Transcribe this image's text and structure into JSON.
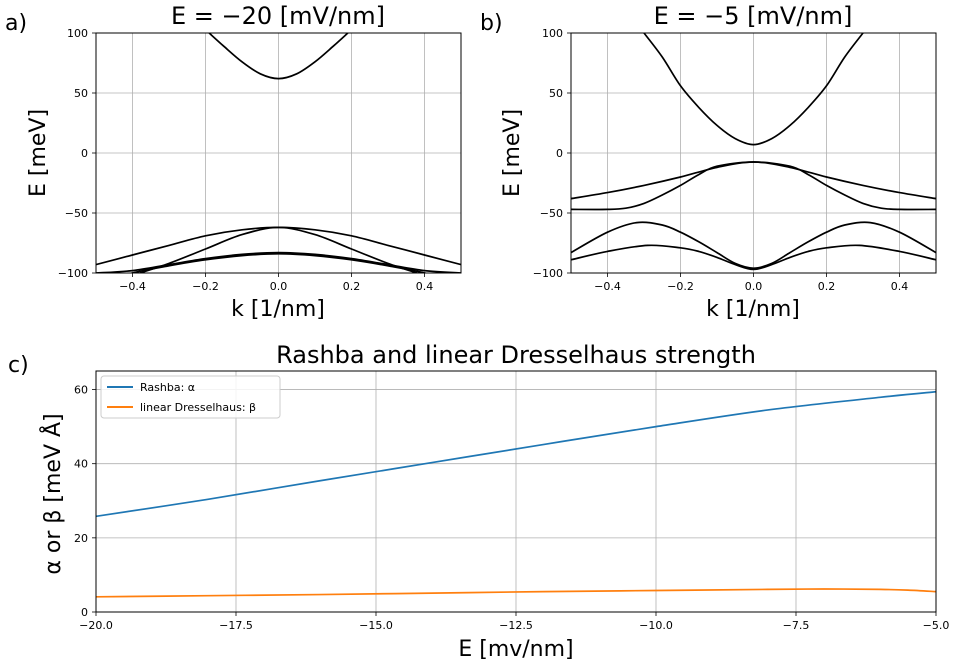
{
  "chart_data": [
    {
      "type": "line",
      "panel_label": "a)",
      "title": "E = −20 [mV/nm]",
      "xlabel": "k [1/nm]",
      "ylabel": "E [meV]",
      "xlim": [
        -0.5,
        0.5
      ],
      "ylim": [
        -100,
        100
      ],
      "xticks": [
        -0.4,
        -0.2,
        0.0,
        0.2,
        0.4
      ],
      "xtick_labels": [
        "−0.4",
        "−0.2",
        "0.0",
        "0.2",
        "0.4"
      ],
      "yticks": [
        -100,
        -50,
        0,
        50,
        100
      ],
      "ytick_labels": [
        "−100",
        "−50",
        "0",
        "50",
        "100"
      ],
      "grid": true,
      "series": [
        {
          "color": "#000000",
          "x": [
            -0.19,
            -0.15,
            -0.1,
            -0.05,
            0.0,
            0.05,
            0.1,
            0.15,
            0.19
          ],
          "y": [
            100,
            89,
            76,
            66,
            62,
            66,
            76,
            89,
            100
          ]
        },
        {
          "color": "#000000",
          "x": [
            -0.5,
            -0.4,
            -0.3,
            -0.2,
            -0.1,
            0.0,
            0.1,
            0.2,
            0.3,
            0.4,
            0.5
          ],
          "y": [
            -93,
            -85,
            -77,
            -69,
            -64,
            -62,
            -64,
            -69,
            -77,
            -85,
            -93
          ]
        },
        {
          "color": "#000000",
          "x": [
            -0.5,
            -0.4,
            -0.3,
            -0.2,
            -0.1,
            0.0,
            0.1,
            0.2,
            0.3,
            0.4,
            0.5
          ],
          "y": [
            -100,
            -98,
            -93,
            -88,
            -84.5,
            -83,
            -84.5,
            -88,
            -93,
            -98,
            -100
          ]
        },
        {
          "color": "#000000",
          "x": [
            -0.38,
            -0.3,
            -0.2,
            -0.1,
            0.0,
            0.1,
            0.2,
            0.3,
            0.38
          ],
          "y": [
            -100,
            -92,
            -80,
            -68,
            -62,
            -68,
            -80,
            -92,
            -100
          ]
        },
        {
          "color": "#000000",
          "x": [
            -0.5,
            -0.4,
            -0.3,
            -0.2,
            -0.1,
            0.0,
            0.1,
            0.2,
            0.3,
            0.4,
            0.5
          ],
          "y": [
            -109,
            -100,
            -94,
            -89,
            -85.5,
            -84,
            -85.5,
            -89,
            -94,
            -100,
            -109
          ]
        }
      ]
    },
    {
      "type": "line",
      "panel_label": "b)",
      "title": "E = −5 [mV/nm]",
      "xlabel": "k [1/nm]",
      "ylabel": "E [meV]",
      "xlim": [
        -0.5,
        0.5
      ],
      "ylim": [
        -100,
        100
      ],
      "xticks": [
        -0.4,
        -0.2,
        0.0,
        0.2,
        0.4
      ],
      "xtick_labels": [
        "−0.4",
        "−0.2",
        "0.0",
        "0.2",
        "0.4"
      ],
      "yticks": [
        -100,
        -50,
        0,
        50,
        100
      ],
      "ytick_labels": [
        "−100",
        "−50",
        "0",
        "50",
        "100"
      ],
      "grid": true,
      "series": [
        {
          "color": "#000000",
          "x": [
            -0.3,
            -0.25,
            -0.2,
            -0.15,
            -0.1,
            -0.05,
            0.0,
            0.05,
            0.1,
            0.15,
            0.2,
            0.25,
            0.3
          ],
          "y": [
            100,
            80,
            56,
            38,
            23,
            12,
            7,
            12,
            23,
            38,
            56,
            80,
            100
          ]
        },
        {
          "color": "#000000",
          "x": [
            -0.5,
            -0.4,
            -0.3,
            -0.2,
            -0.1,
            0.0,
            0.1,
            0.2,
            0.3,
            0.4,
            0.5
          ],
          "y": [
            -38,
            -33,
            -27,
            -20,
            -12,
            -7.5,
            -12,
            -20,
            -27,
            -33,
            -38
          ]
        },
        {
          "color": "#000000",
          "x": [
            -0.5,
            -0.4,
            -0.35,
            -0.3,
            -0.25,
            -0.2,
            -0.15,
            -0.1,
            0.0,
            0.1,
            0.15,
            0.2,
            0.25,
            0.3,
            0.35,
            0.4,
            0.5
          ],
          "y": [
            -47,
            -47,
            -46,
            -42,
            -35,
            -27,
            -18,
            -11,
            -7.5,
            -11,
            -18,
            -27,
            -35,
            -42,
            -46,
            -47,
            -47
          ]
        },
        {
          "color": "#000000",
          "x": [
            -0.5,
            -0.4,
            -0.32,
            -0.25,
            -0.2,
            -0.15,
            -0.1,
            -0.05,
            0.0,
            0.05,
            0.1,
            0.15,
            0.2,
            0.25,
            0.32,
            0.4,
            0.5
          ],
          "y": [
            -83,
            -66,
            -58,
            -60,
            -66,
            -74,
            -83,
            -92,
            -96,
            -92,
            -83,
            -74,
            -66,
            -60,
            -58,
            -66,
            -83
          ]
        },
        {
          "color": "#000000",
          "x": [
            -0.5,
            -0.4,
            -0.29,
            -0.2,
            -0.15,
            -0.1,
            -0.05,
            0.0,
            0.05,
            0.1,
            0.15,
            0.2,
            0.29,
            0.4,
            0.5
          ],
          "y": [
            -89,
            -82,
            -77,
            -79,
            -82,
            -87,
            -93,
            -97,
            -93,
            -87,
            -82,
            -79,
            -77,
            -82,
            -89
          ]
        }
      ]
    },
    {
      "type": "line",
      "panel_label": "c)",
      "title": "Rashba and linear Dresselhaus strength",
      "xlabel": "E [mv/nm]",
      "ylabel": "α or β [meV Å]",
      "xlim": [
        -20,
        -5
      ],
      "ylim": [
        0,
        65
      ],
      "xticks": [
        -20,
        -17.5,
        -15,
        -12.5,
        -10,
        -7.5,
        -5
      ],
      "xtick_labels": [
        "−20.0",
        "−17.5",
        "−15.0",
        "−12.5",
        "−10.0",
        "−7.5",
        "−5.0"
      ],
      "yticks": [
        0,
        20,
        40,
        60
      ],
      "ytick_labels": [
        "0",
        "20",
        "40",
        "60"
      ],
      "grid": true,
      "legend": "top-left",
      "series": [
        {
          "name": "Rashba: α",
          "color": "#1f77b4",
          "x": [
            -20,
            -18,
            -16,
            -14,
            -12,
            -10,
            -8,
            -6,
            -5
          ],
          "y": [
            25.8,
            30.4,
            35.4,
            40.3,
            45.2,
            50.0,
            54.5,
            57.9,
            59.4
          ]
        },
        {
          "name": "linear Dresselhaus: β",
          "color": "#ff7f0e",
          "x": [
            -20,
            -18,
            -16,
            -14,
            -12,
            -10,
            -8,
            -7,
            -6,
            -5.5,
            -5
          ],
          "y": [
            4.1,
            4.4,
            4.7,
            5.1,
            5.5,
            5.8,
            6.1,
            6.2,
            6.1,
            5.9,
            5.5
          ]
        }
      ]
    }
  ]
}
